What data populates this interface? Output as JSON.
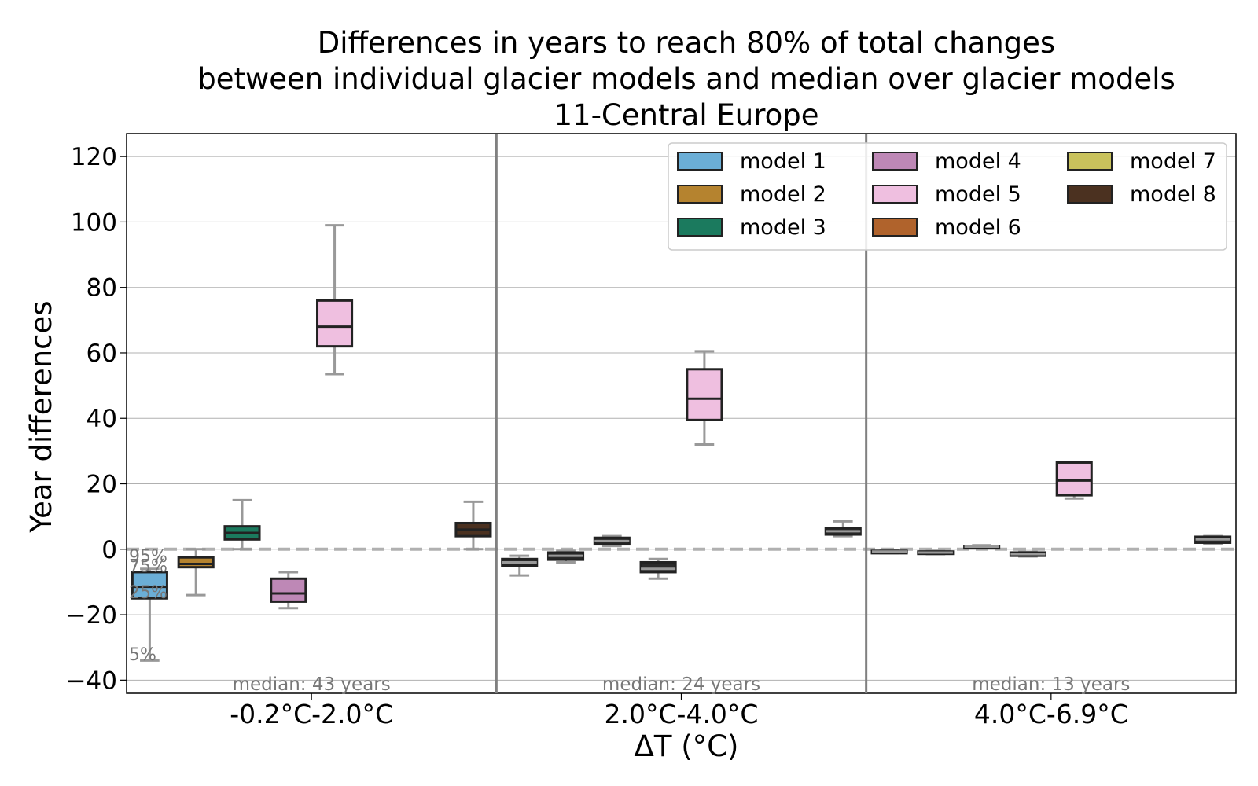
{
  "chart_data": {
    "type": "box",
    "title": [
      "Differences in years to reach 80% of total changes",
      "between individual glacier models and median over glacier models",
      "11-Central Europe"
    ],
    "ylabel": "Year differences",
    "xlabel": "ΔT (°C)",
    "ylim": [
      -44,
      127
    ],
    "yticks": [
      -40,
      -20,
      0,
      20,
      40,
      60,
      80,
      100,
      120
    ],
    "ytick_labels": [
      "−40",
      "−20",
      "0",
      "20",
      "40",
      "60",
      "80",
      "100",
      "120"
    ],
    "grid": "horizontal",
    "legend_position": "top-right",
    "percentile_labels": [
      "95%",
      "75%",
      "25%",
      "5%"
    ],
    "percentile_values": [
      -2,
      -5,
      -13,
      -32
    ],
    "groups": [
      {
        "label": "-0.2°C-2.0°C",
        "median_text": "median: 43 years"
      },
      {
        "label": "2.0°C-4.0°C",
        "median_text": "median: 24 years"
      },
      {
        "label": "4.0°C-6.9°C",
        "median_text": "median: 13 years"
      }
    ],
    "series": [
      {
        "name": "model 1",
        "color": "#6baed6",
        "boxes": [
          {
            "p5": -34,
            "q1": -15,
            "median": -11.5,
            "q3": -7,
            "p95": -6
          },
          {
            "p5": -8,
            "q1": -5,
            "median": -4,
            "q3": -3,
            "p95": -2
          },
          {
            "p5": -1.2,
            "q1": -1,
            "median": -0.7,
            "q3": -0.5,
            "p95": -0.3
          }
        ]
      },
      {
        "name": "model 2",
        "color": "#b5832f",
        "boxes": [
          {
            "p5": -14,
            "q1": -5.5,
            "median": -4.5,
            "q3": -2.5,
            "p95": 0
          },
          {
            "p5": -4,
            "q1": -3.2,
            "median": -2,
            "q3": -1,
            "p95": -0.5
          },
          {
            "p5": -1.5,
            "q1": -1.3,
            "median": -1,
            "q3": -0.7,
            "p95": -0.5
          }
        ]
      },
      {
        "name": "model 3",
        "color": "#1b7a5e",
        "boxes": [
          {
            "p5": 0,
            "q1": 3,
            "median": 5,
            "q3": 7,
            "p95": 15
          },
          {
            "p5": 1,
            "q1": 1.5,
            "median": 2.5,
            "q3": 3.5,
            "p95": 4
          },
          {
            "p5": 0.4,
            "q1": 0.5,
            "median": 0.8,
            "q3": 1,
            "p95": 1.2
          }
        ]
      },
      {
        "name": "model 4",
        "color": "#be88b6",
        "boxes": [
          {
            "p5": -18,
            "q1": -16,
            "median": -13.5,
            "q3": -9,
            "p95": -7
          },
          {
            "p5": -9,
            "q1": -7,
            "median": -6,
            "q3": -4,
            "p95": -3
          },
          {
            "p5": -2.2,
            "q1": -2,
            "median": -1.5,
            "q3": -1,
            "p95": -0.8
          }
        ]
      },
      {
        "name": "model 5",
        "color": "#efbfe0",
        "boxes": [
          {
            "p5": 53.5,
            "q1": 62,
            "median": 68,
            "q3": 76,
            "p95": 99
          },
          {
            "p5": 32,
            "q1": 39.5,
            "median": 46,
            "q3": 55,
            "p95": 60.5
          },
          {
            "p5": 15.5,
            "q1": 16.5,
            "median": 21,
            "q3": 26.5,
            "p95": 26.5
          }
        ]
      },
      {
        "name": "model 6",
        "color": "#b0632c",
        "boxes": []
      },
      {
        "name": "model 7",
        "color": "#c9c25c",
        "boxes": []
      },
      {
        "name": "model 8",
        "color": "#4b3120",
        "boxes": [
          {
            "p5": 0,
            "q1": 4,
            "median": 6,
            "q3": 8,
            "p95": 14.5
          },
          {
            "p5": 4,
            "q1": 4.5,
            "median": 5.5,
            "q3": 6.5,
            "p95": 8.5
          },
          {
            "p5": 1.5,
            "q1": 2,
            "median": 3,
            "q3": 3.8,
            "p95": 4
          }
        ]
      }
    ]
  }
}
